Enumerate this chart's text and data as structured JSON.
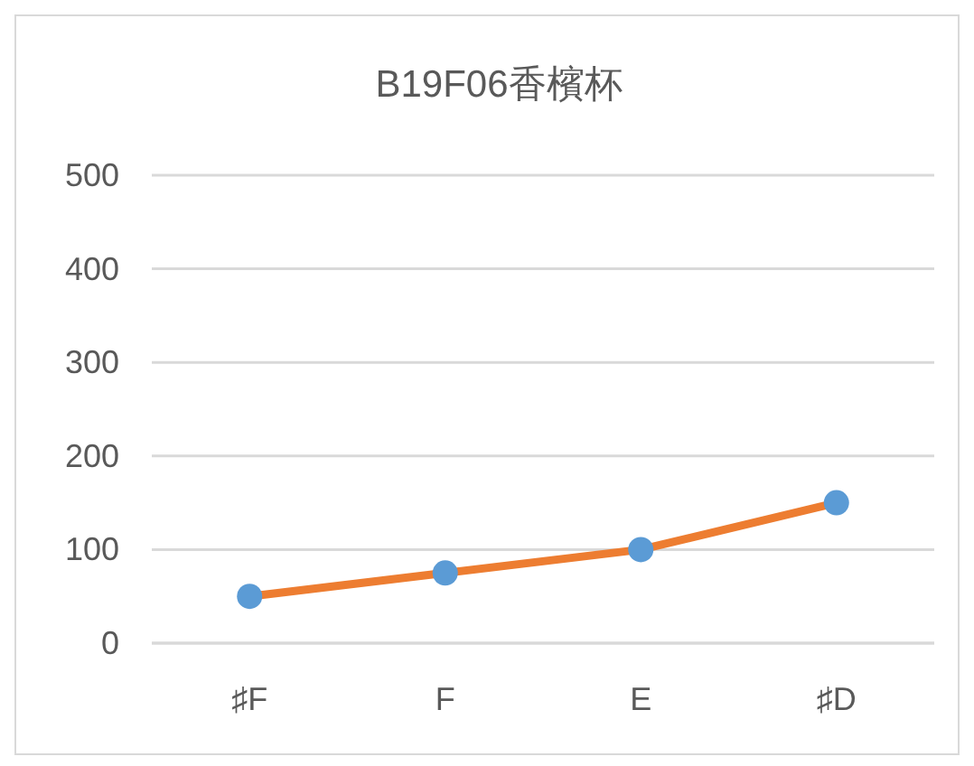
{
  "chart_data": {
    "type": "line",
    "title": "B19F06香檳杯",
    "categories": [
      "♯F",
      "F",
      "E",
      "♯D"
    ],
    "series": [
      {
        "color": "#ed7d31",
        "colors": [
          "#5b9bd5",
          "#5b9bd5",
          "#5b9bd5",
          "#5b9bd5"
        ],
        "values": [
          50,
          75,
          100,
          150
        ]
      }
    ],
    "ylim": [
      0,
      500
    ],
    "yticks": [
      0,
      100,
      200,
      300,
      400,
      500
    ],
    "grid": "y",
    "marker": "circle"
  }
}
